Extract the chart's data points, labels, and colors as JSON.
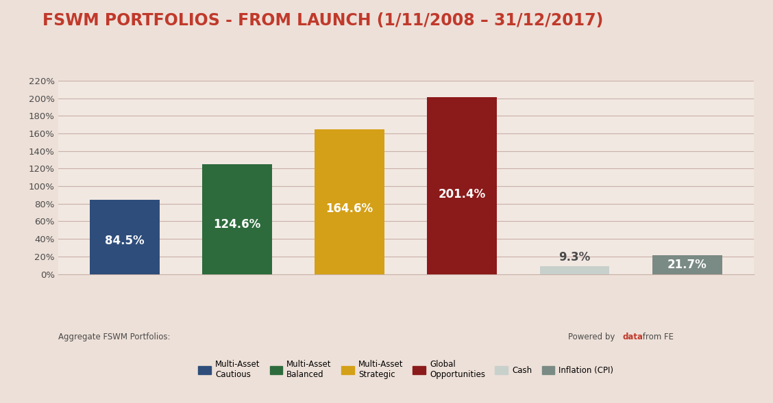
{
  "title": "FSWM PORTFOLIOS - FROM LAUNCH (1/11/2008 – 31/12/2017)",
  "title_color": "#c0392b",
  "background_color": "#ede0d8",
  "plot_background_color": "#f2e8e2",
  "categories": [
    "Multi-Asset\nCautious",
    "Multi-Asset\nBalanced",
    "Multi-Asset\nStrategic",
    "Global\nOpportunities",
    "Cash",
    "Inflation (CPI)"
  ],
  "values": [
    84.5,
    124.6,
    164.6,
    201.4,
    9.3,
    21.7
  ],
  "bar_colors": [
    "#2e4d7b",
    "#2d6b3c",
    "#d4a017",
    "#8b1a1a",
    "#c8d0cc",
    "#7a8a84"
  ],
  "label_colors_inside": [
    "#ffffff",
    "#ffffff",
    "#ffffff",
    "#ffffff",
    "#ffffff"
  ],
  "ylim": [
    0,
    220
  ],
  "yticks": [
    0,
    20,
    40,
    60,
    80,
    100,
    120,
    140,
    160,
    180,
    200,
    220
  ],
  "ytick_labels": [
    "0%",
    "20%",
    "40%",
    "60%",
    "80%",
    "100%",
    "120%",
    "140%",
    "160%",
    "180%",
    "200%",
    "220%"
  ],
  "grid_color": "#c8b0a8",
  "annotation_left": "Aggregate FSWM Portfolios:",
  "annotation_color": "#4a4a4a",
  "annotation_color_bold": "#c0392b",
  "legend_labels": [
    "Multi-Asset\nCautious",
    "Multi-Asset\nBalanced",
    "Multi-Asset\nStrategic",
    "Global\nOpportunities",
    "Cash",
    "Inflation (CPI)"
  ],
  "legend_colors": [
    "#2e4d7b",
    "#2d6b3c",
    "#d4a017",
    "#8b1a1a",
    "#c8d0cc",
    "#7a8a84"
  ],
  "bar_value_labels": [
    "84.5%",
    "124.6%",
    "164.6%",
    "201.4%",
    "9.3%",
    "21.7%"
  ],
  "bar_value_fontsize": 12,
  "title_fontsize": 17
}
